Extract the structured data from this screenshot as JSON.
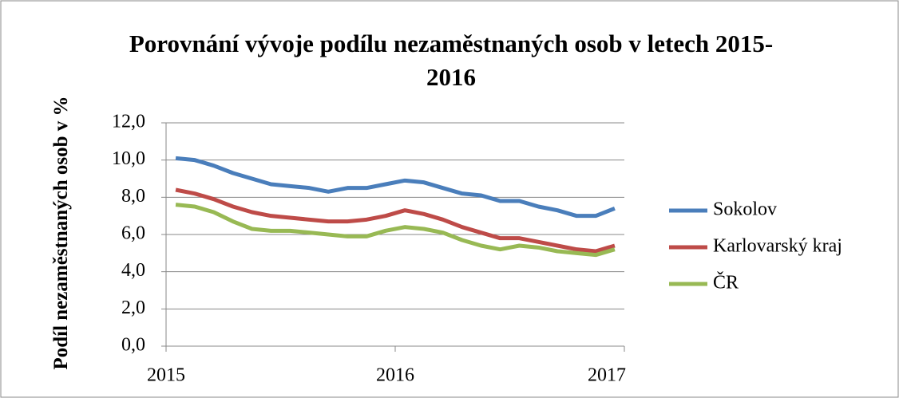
{
  "chart_data": {
    "type": "line",
    "title": "Porovnání vývoje podílu nezaměstnaných osob v letech 2015-2016",
    "y_label": "Podíl nezaměstnaných osob v %",
    "x": [
      2015.042,
      2015.125,
      2015.208,
      2015.292,
      2015.375,
      2015.458,
      2015.542,
      2015.625,
      2015.708,
      2015.792,
      2015.875,
      2015.958,
      2016.042,
      2016.125,
      2016.208,
      2016.292,
      2016.375,
      2016.458,
      2016.542,
      2016.625,
      2016.708,
      2016.792,
      2016.875,
      2016.958
    ],
    "series": [
      {
        "name": "Sokolov",
        "color": "#4a7ebb",
        "values": [
          10.1,
          10.0,
          9.7,
          9.3,
          9.0,
          8.7,
          8.6,
          8.5,
          8.3,
          8.5,
          8.5,
          8.7,
          8.9,
          8.8,
          8.5,
          8.2,
          8.1,
          7.8,
          7.8,
          7.5,
          7.3,
          7.0,
          7.0,
          7.4
        ]
      },
      {
        "name": "Karlovarský kraj",
        "color": "#be4b48",
        "values": [
          8.4,
          8.2,
          7.9,
          7.5,
          7.2,
          7.0,
          6.9,
          6.8,
          6.7,
          6.7,
          6.8,
          7.0,
          7.3,
          7.1,
          6.8,
          6.4,
          6.1,
          5.8,
          5.8,
          5.6,
          5.4,
          5.2,
          5.1,
          5.4
        ]
      },
      {
        "name": "ČR",
        "color": "#98b954",
        "values": [
          7.6,
          7.5,
          7.2,
          6.7,
          6.3,
          6.2,
          6.2,
          6.1,
          6.0,
          5.9,
          5.9,
          6.2,
          6.4,
          6.3,
          6.1,
          5.7,
          5.4,
          5.2,
          5.4,
          5.3,
          5.1,
          5.0,
          4.9,
          5.2
        ]
      }
    ],
    "xlim": [
      2015,
      2017
    ],
    "xticks": [
      2015,
      2016,
      2017
    ],
    "ylim": [
      0,
      12
    ],
    "yticks": [
      {
        "value": 0,
        "label": "0,0"
      },
      {
        "value": 2,
        "label": "2,0"
      },
      {
        "value": 4,
        "label": "4,0"
      },
      {
        "value": 6,
        "label": "6,0"
      },
      {
        "value": 8,
        "label": "8,0"
      },
      {
        "value": 10,
        "label": "10,0"
      },
      {
        "value": 12,
        "label": "12,0"
      }
    ],
    "grid": true,
    "legend": "right"
  }
}
